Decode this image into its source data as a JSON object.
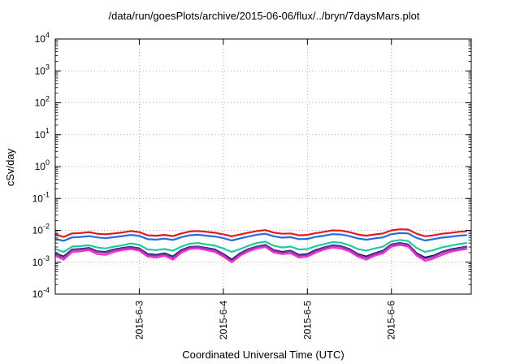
{
  "chart_data": {
    "type": "line",
    "title": "/data/run/goesPlots/archive/2015-06-06/flux/../bryn/7daysMars.plot",
    "xlabel": "Coordinated Universal Time (UTC)",
    "ylabel": "cSv/day",
    "y_scale": "log",
    "ylim": [
      0.0001,
      10000
    ],
    "y_ticks": [
      {
        "base": "10",
        "exp": "-4"
      },
      {
        "base": "10",
        "exp": "-3"
      },
      {
        "base": "10",
        "exp": "-2"
      },
      {
        "base": "10",
        "exp": "-1"
      },
      {
        "base": "10",
        "exp": "0"
      },
      {
        "base": "10",
        "exp": "1"
      },
      {
        "base": "10",
        "exp": "2"
      },
      {
        "base": "10",
        "exp": "3"
      },
      {
        "base": "10",
        "exp": "4"
      }
    ],
    "xlim": [
      2.0,
      6.95
    ],
    "x_ticks": [
      {
        "value": 3,
        "label": "2015-6-3"
      },
      {
        "value": 4,
        "label": "2015-6-4"
      },
      {
        "value": 5,
        "label": "2015-6-5"
      },
      {
        "value": 6,
        "label": "2015-6-6"
      }
    ],
    "grid": true,
    "legend": "none",
    "x": [
      2.0,
      2.1,
      2.2,
      2.3,
      2.4,
      2.5,
      2.6,
      2.7,
      2.8,
      2.9,
      3.0,
      3.1,
      3.2,
      3.3,
      3.4,
      3.5,
      3.6,
      3.7,
      3.8,
      3.9,
      4.0,
      4.1,
      4.2,
      4.3,
      4.4,
      4.5,
      4.6,
      4.7,
      4.8,
      4.9,
      5.0,
      5.1,
      5.2,
      5.3,
      5.4,
      5.5,
      5.6,
      5.7,
      5.8,
      5.9,
      6.0,
      6.1,
      6.2,
      6.3,
      6.4,
      6.5,
      6.6,
      6.7,
      6.8,
      6.9
    ],
    "series": [
      {
        "color": "#e41a1c",
        "values": [
          0.0075,
          0.0062,
          0.008,
          0.0082,
          0.0088,
          0.0078,
          0.0075,
          0.008,
          0.0086,
          0.0095,
          0.0088,
          0.007,
          0.0068,
          0.0072,
          0.0066,
          0.008,
          0.0092,
          0.0095,
          0.009,
          0.0084,
          0.0075,
          0.0065,
          0.0074,
          0.0085,
          0.0095,
          0.0102,
          0.0085,
          0.0078,
          0.008,
          0.007,
          0.0072,
          0.0082,
          0.009,
          0.01,
          0.0098,
          0.0088,
          0.0074,
          0.0068,
          0.0074,
          0.008,
          0.01,
          0.0108,
          0.0106,
          0.0078,
          0.0065,
          0.007,
          0.0078,
          0.0083,
          0.009,
          0.0094
        ]
      },
      {
        "color": "#1f6fde",
        "values": [
          0.0054,
          0.0047,
          0.006,
          0.0062,
          0.0066,
          0.006,
          0.0057,
          0.0061,
          0.0066,
          0.0072,
          0.0067,
          0.0053,
          0.0051,
          0.0055,
          0.005,
          0.0061,
          0.007,
          0.0073,
          0.0068,
          0.0064,
          0.0057,
          0.0048,
          0.0056,
          0.0064,
          0.0073,
          0.0078,
          0.0065,
          0.0059,
          0.0061,
          0.0053,
          0.0054,
          0.0062,
          0.0068,
          0.0076,
          0.0074,
          0.0066,
          0.0056,
          0.0051,
          0.0056,
          0.006,
          0.0076,
          0.0082,
          0.008,
          0.0058,
          0.0048,
          0.0053,
          0.0059,
          0.0063,
          0.0068,
          0.0071
        ]
      },
      {
        "color": "#20c9a2",
        "values": [
          0.0026,
          0.0021,
          0.0031,
          0.0032,
          0.0034,
          0.0029,
          0.0027,
          0.0031,
          0.0034,
          0.0039,
          0.0035,
          0.0025,
          0.0024,
          0.0026,
          0.0023,
          0.0031,
          0.0038,
          0.004,
          0.0036,
          0.0033,
          0.0027,
          0.0021,
          0.0026,
          0.0033,
          0.004,
          0.0044,
          0.0033,
          0.0029,
          0.0031,
          0.0025,
          0.0026,
          0.0032,
          0.0037,
          0.0043,
          0.0041,
          0.0034,
          0.0026,
          0.0023,
          0.0027,
          0.0031,
          0.0045,
          0.005,
          0.0046,
          0.0028,
          0.0021,
          0.0024,
          0.0029,
          0.0033,
          0.0037,
          0.004
        ]
      },
      {
        "color": "#0b0b4a",
        "values": [
          0.0019,
          0.0015,
          0.0025,
          0.0026,
          0.0028,
          0.0022,
          0.0021,
          0.0025,
          0.0028,
          0.003,
          0.0027,
          0.0018,
          0.0017,
          0.0019,
          0.0015,
          0.0024,
          0.003,
          0.0031,
          0.0028,
          0.0025,
          0.0018,
          0.0012,
          0.0019,
          0.0026,
          0.0031,
          0.0035,
          0.0024,
          0.0021,
          0.0023,
          0.0017,
          0.0018,
          0.0024,
          0.0029,
          0.0034,
          0.0032,
          0.0026,
          0.0018,
          0.0015,
          0.0019,
          0.0023,
          0.0036,
          0.004,
          0.0036,
          0.0019,
          0.0014,
          0.0016,
          0.0021,
          0.0025,
          0.0028,
          0.0031
        ]
      },
      {
        "color": "#7b3aa8",
        "values": [
          0.0018,
          0.0014,
          0.0024,
          0.0025,
          0.0027,
          0.0021,
          0.002,
          0.0024,
          0.0027,
          0.0029,
          0.0026,
          0.0017,
          0.0016,
          0.0018,
          0.0014,
          0.0023,
          0.0029,
          0.003,
          0.0027,
          0.0024,
          0.0017,
          0.0011,
          0.0018,
          0.0025,
          0.003,
          0.0034,
          0.0023,
          0.002,
          0.0022,
          0.0016,
          0.0017,
          0.0023,
          0.0028,
          0.0033,
          0.0031,
          0.0025,
          0.0017,
          0.0014,
          0.0018,
          0.0022,
          0.0035,
          0.0039,
          0.0035,
          0.0018,
          0.0013,
          0.0015,
          0.002,
          0.0024,
          0.0027,
          0.003
        ]
      },
      {
        "color": "#ff2bd6",
        "values": [
          0.0016,
          0.0012,
          0.0021,
          0.0022,
          0.0024,
          0.0018,
          0.0017,
          0.0021,
          0.0024,
          0.0026,
          0.0023,
          0.0015,
          0.0014,
          0.0016,
          0.0012,
          0.002,
          0.0026,
          0.0027,
          0.0024,
          0.0021,
          0.0015,
          0.001,
          0.0016,
          0.0022,
          0.0027,
          0.003,
          0.002,
          0.0018,
          0.0019,
          0.0014,
          0.0015,
          0.002,
          0.0025,
          0.0029,
          0.0027,
          0.0022,
          0.0015,
          0.0012,
          0.0016,
          0.0019,
          0.0031,
          0.0035,
          0.0031,
          0.0016,
          0.0011,
          0.0013,
          0.0017,
          0.0021,
          0.0024,
          0.0026
        ]
      }
    ]
  }
}
